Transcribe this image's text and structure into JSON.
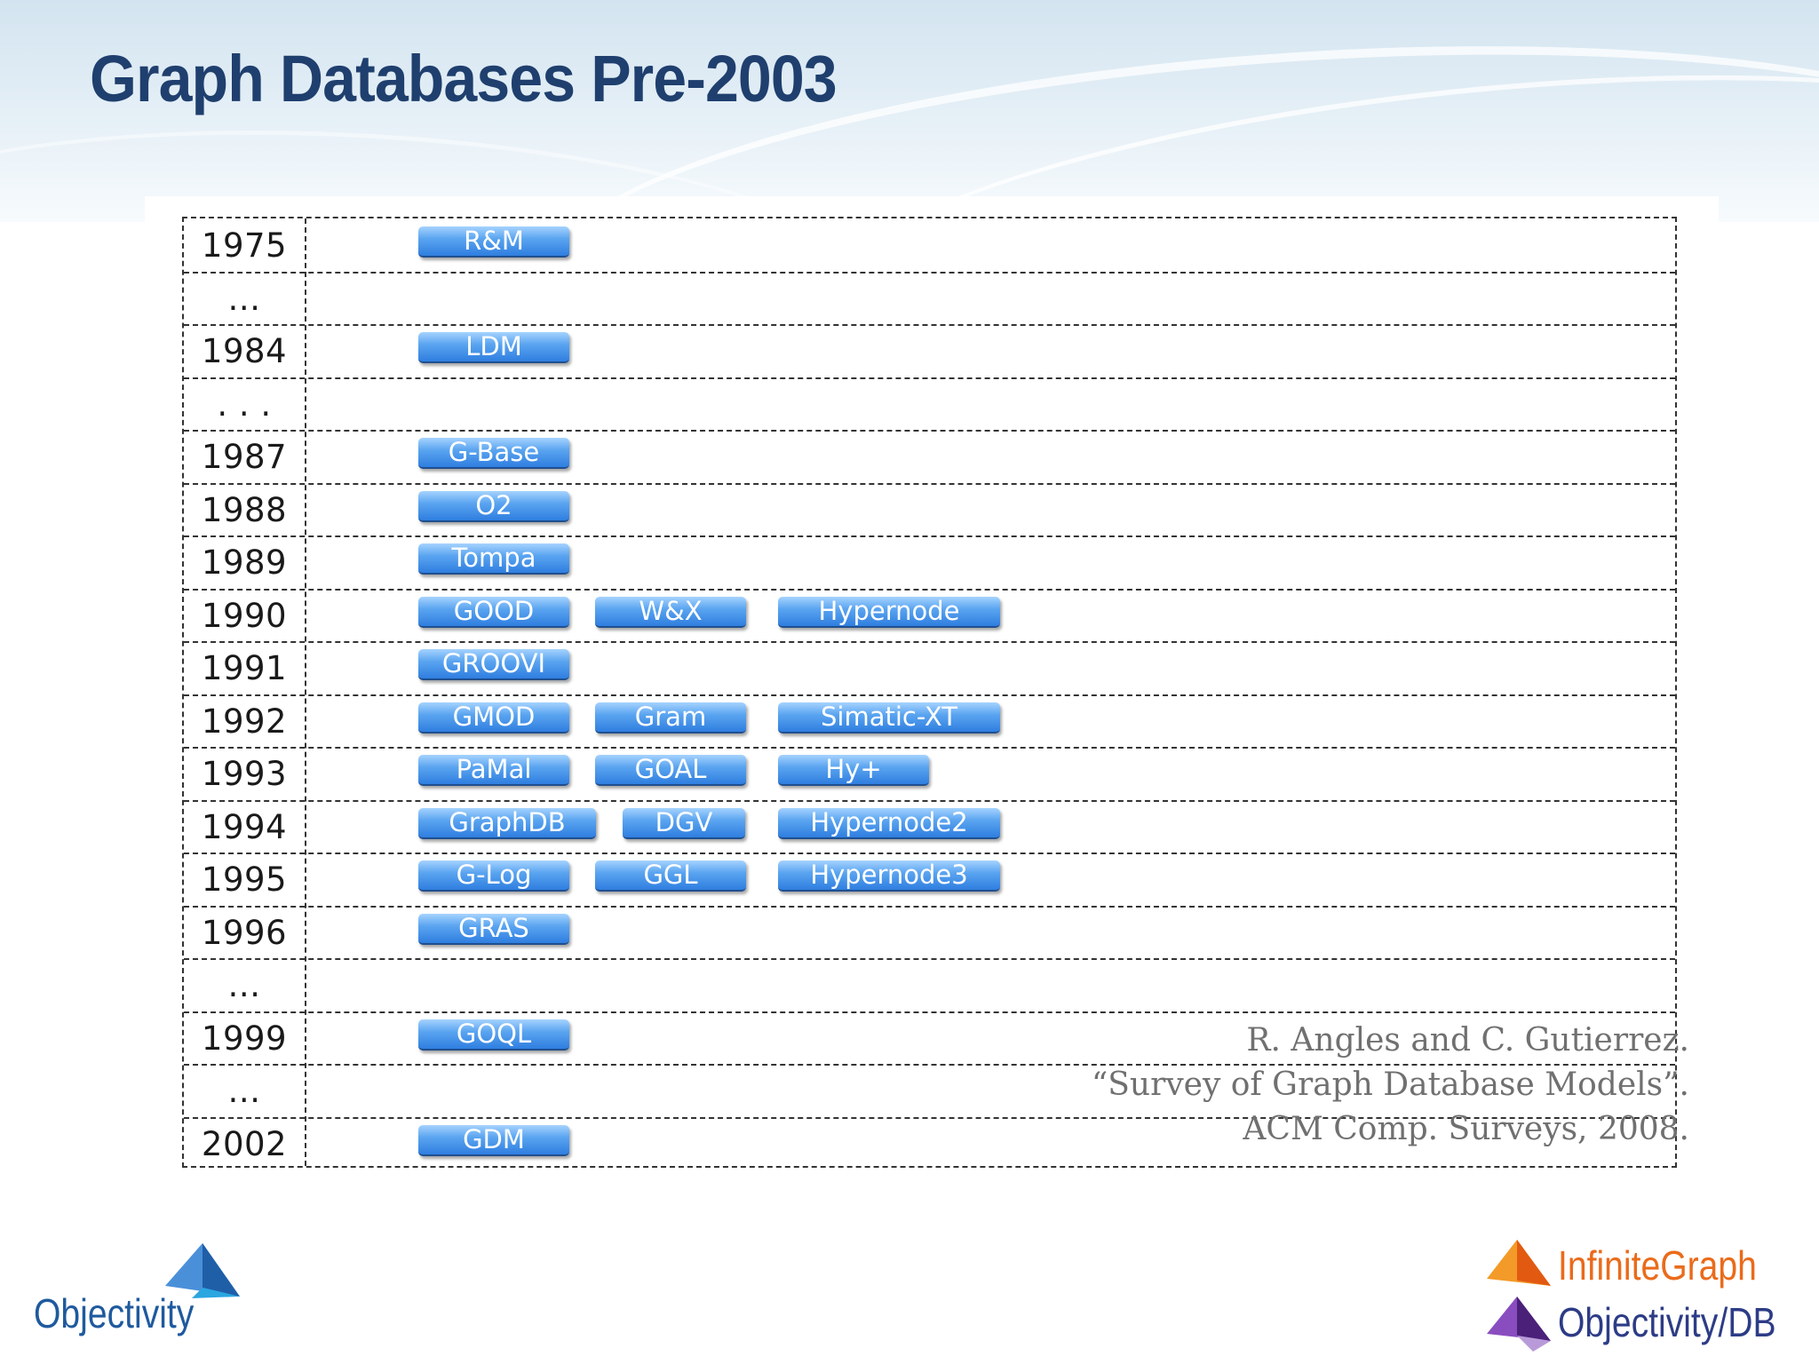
{
  "slide": {
    "title": "Graph Databases Pre-2003"
  },
  "timeline": [
    {
      "year": "1975",
      "models": [
        "R&M"
      ]
    },
    {
      "year": "…",
      "models": []
    },
    {
      "year": "1984",
      "models": [
        "LDM"
      ]
    },
    {
      "year": ". . .",
      "models": []
    },
    {
      "year": "1987",
      "models": [
        "G-Base"
      ]
    },
    {
      "year": "1988",
      "models": [
        "O2"
      ]
    },
    {
      "year": "1989",
      "models": [
        "Tompa"
      ]
    },
    {
      "year": "1990",
      "models": [
        "GOOD",
        "W&X",
        "Hypernode"
      ]
    },
    {
      "year": "1991",
      "models": [
        "GROOVI"
      ]
    },
    {
      "year": "1992",
      "models": [
        "GMOD",
        "Gram",
        "Simatic-XT"
      ]
    },
    {
      "year": "1993",
      "models": [
        "PaMal",
        "GOAL",
        "Hy+"
      ]
    },
    {
      "year": "1994",
      "models": [
        "GraphDB",
        "DGV",
        "Hypernode2"
      ]
    },
    {
      "year": "1995",
      "models": [
        "G-Log",
        "GGL",
        "Hypernode3"
      ]
    },
    {
      "year": "1996",
      "models": [
        "GRAS"
      ]
    },
    {
      "year": "…",
      "models": []
    },
    {
      "year": "1999",
      "models": [
        "GOQL"
      ]
    },
    {
      "year": "…",
      "models": []
    },
    {
      "year": "2002",
      "models": [
        "GDM"
      ]
    }
  ],
  "citation": {
    "line1": "R. Angles and C. Gutierrez.",
    "line2": "“Survey of Graph Database Models”.",
    "line3": "ACM Comp. Surveys, 2008."
  },
  "logos": {
    "objectivity": "Objectivity",
    "infinitegraph": "InfiniteGraph",
    "objectivitydb": "Objectivity/DB"
  },
  "colors": {
    "title": "#1f3f6e",
    "tag_top": "#a6d3ff",
    "tag_bottom": "#2f7ee0",
    "infinitegraph_orange": "#ea6b1b",
    "objectivitydb_purple": "#5a2d8c",
    "objectivity_blue": "#1f5a9e"
  }
}
